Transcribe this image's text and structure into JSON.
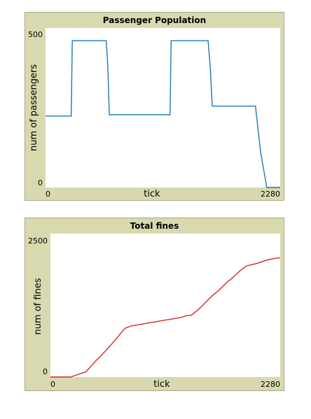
{
  "plots": [
    {
      "title": "Passenger Population",
      "xlabel": "tick",
      "ylabel": "num of passengers",
      "x_min_label": "0",
      "x_max_label": "2280",
      "y_min_label": "0",
      "y_max_label": "500",
      "color": "#1f78b4"
    },
    {
      "title": "Total fines",
      "xlabel": "tick",
      "ylabel": "num of fines",
      "x_min_label": "0",
      "x_max_label": "2280",
      "y_min_label": "0",
      "y_max_label": "2500",
      "color": "#d62728"
    }
  ],
  "chart_data": [
    {
      "type": "line",
      "title": "Passenger Population",
      "xlabel": "tick",
      "ylabel": "num of passengers",
      "xlim": [
        0,
        2280
      ],
      "ylim": [
        0,
        500
      ],
      "grid": false,
      "series": [
        {
          "x": [
            0,
            250,
            260,
            590,
            605,
            620,
            1210,
            1220,
            1580,
            1600,
            1620,
            2040,
            2090,
            2150,
            2280
          ],
          "values": [
            224,
            224,
            460,
            460,
            380,
            228,
            228,
            460,
            460,
            380,
            255,
            255,
            110,
            0,
            0
          ]
        }
      ]
    },
    {
      "type": "line",
      "title": "Total fines",
      "xlabel": "tick",
      "ylabel": "num of fines",
      "xlim": [
        0,
        2280
      ],
      "ylim": [
        0,
        2500
      ],
      "grid": false,
      "series": [
        {
          "x": [
            0,
            200,
            250,
            300,
            350,
            400,
            450,
            500,
            550,
            600,
            650,
            700,
            740,
            800,
            900,
            1000,
            1100,
            1200,
            1300,
            1350,
            1400,
            1450,
            1500,
            1550,
            1600,
            1650,
            1700,
            1750,
            1800,
            1850,
            1900,
            1950,
            2000,
            2050,
            2100,
            2150,
            2200,
            2280
          ],
          "values": [
            0,
            0,
            30,
            60,
            90,
            180,
            280,
            370,
            460,
            560,
            660,
            770,
            850,
            890,
            920,
            950,
            980,
            1010,
            1040,
            1070,
            1080,
            1150,
            1230,
            1320,
            1410,
            1480,
            1560,
            1650,
            1720,
            1800,
            1880,
            1940,
            1960,
            1980,
            2010,
            2040,
            2060,
            2080
          ]
        }
      ]
    }
  ]
}
